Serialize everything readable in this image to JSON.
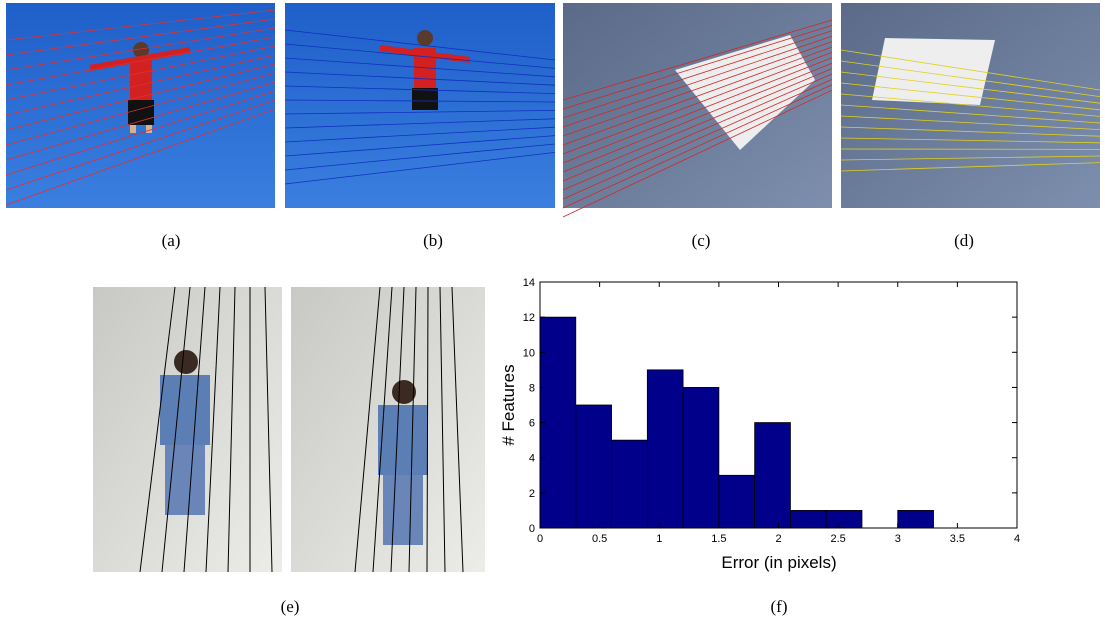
{
  "captions": [
    "(a)",
    "(b)",
    "(c)",
    "(d)",
    "(e)",
    "(f)"
  ],
  "chart_data": {
    "type": "histogram",
    "xlabel": "Error (in pixels)",
    "ylabel": "# Features",
    "bins": [
      0,
      0.3,
      0.6,
      0.9,
      1.2,
      1.5,
      1.8,
      2.1,
      2.4,
      2.7,
      3.0,
      3.3
    ],
    "values": [
      12,
      7,
      5,
      9,
      8,
      3,
      6,
      1,
      1,
      0,
      1
    ],
    "color": "#00008b",
    "xlim": [
      0,
      4
    ],
    "xticks": [
      0,
      0.5,
      1,
      1.5,
      2,
      2.5,
      3,
      3.5,
      4
    ],
    "ylim": [
      0,
      14
    ],
    "yticks": [
      0,
      2,
      4,
      6,
      8,
      10,
      12,
      14
    ]
  }
}
